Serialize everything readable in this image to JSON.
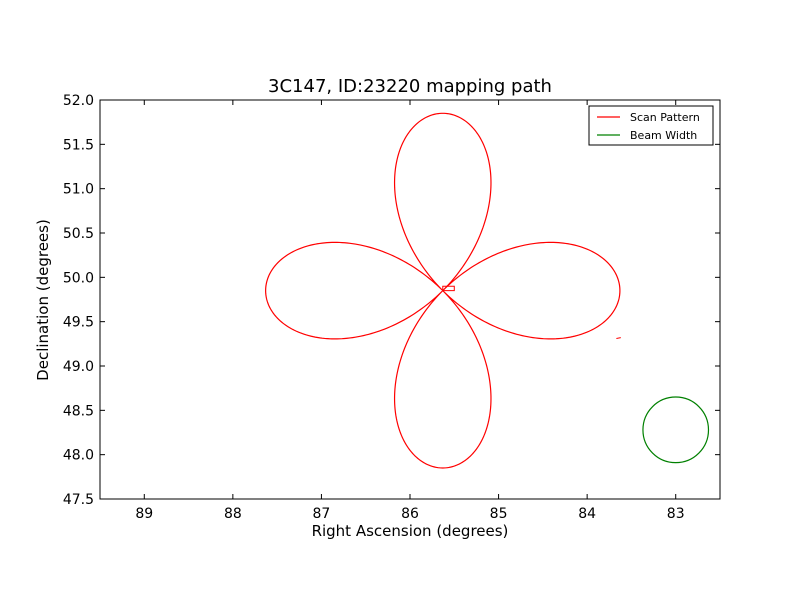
{
  "chart_data": {
    "type": "line",
    "title": "3C147, ID:23220 mapping path",
    "xlabel": "Right Ascension (degrees)",
    "ylabel": "Declination (degrees)",
    "xlim": [
      89.5,
      82.5
    ],
    "ylim": [
      47.5,
      52.0
    ],
    "x_inverted": true,
    "grid": false,
    "xticks": [
      "89",
      "88",
      "87",
      "86",
      "85",
      "84",
      "83"
    ],
    "xtick_values": [
      89,
      88,
      87,
      86,
      85,
      84,
      83
    ],
    "yticks": [
      "47.5",
      "48.0",
      "48.5",
      "49.0",
      "49.5",
      "50.0",
      "50.5",
      "51.0",
      "51.5",
      "52.0"
    ],
    "ytick_values": [
      47.5,
      48.0,
      48.5,
      49.0,
      49.5,
      50.0,
      50.5,
      51.0,
      51.5,
      52.0
    ],
    "legend_position": "top-right",
    "series": [
      {
        "name": "Scan Pattern",
        "color": "#ff0000",
        "kind": "rose-curve",
        "center": [
          85.63,
          49.85
        ],
        "petal_reach_deg": 2.0,
        "petals": 4
      },
      {
        "name": "Beam Width",
        "color": "#008000",
        "kind": "circle",
        "center": [
          83.0,
          48.28
        ],
        "radius_deg": 0.37
      }
    ],
    "annotations": {
      "offset_box": {
        "color": "#ff0000",
        "ra": [
          85.63,
          85.5
        ],
        "dec": [
          49.85,
          49.9
        ]
      },
      "start_stub": {
        "color": "#ff0000",
        "ra": [
          83.67,
          83.62
        ],
        "dec": [
          49.31,
          49.32
        ]
      }
    }
  }
}
